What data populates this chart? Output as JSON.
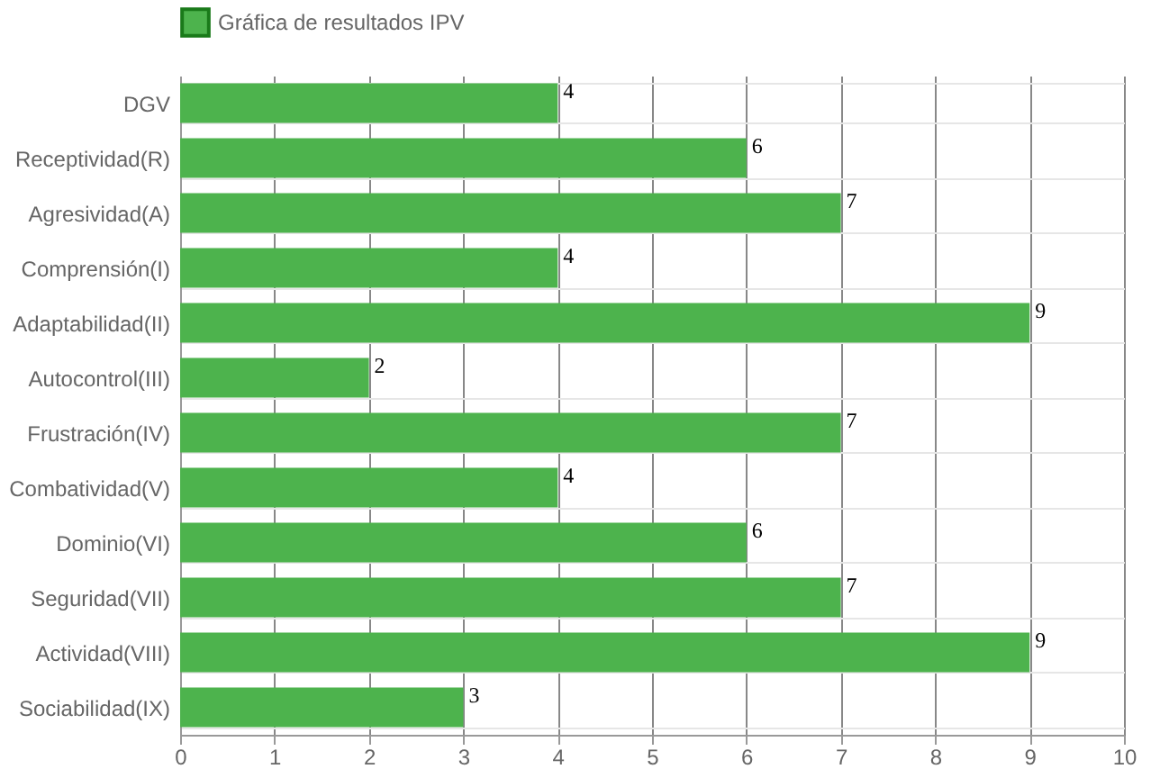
{
  "chart_data": {
    "type": "bar",
    "orientation": "horizontal",
    "categories": [
      "DGV",
      "Receptividad(R)",
      "Agresividad(A)",
      "Comprensión(I)",
      "Adaptabilidad(II)",
      "Autocontrol(III)",
      "Frustración(IV)",
      "Combatividad(V)",
      "Dominio(VI)",
      "Seguridad(VII)",
      "Actividad(VIII)",
      "Sociabilidad(IX)"
    ],
    "series": [
      {
        "name": "Gráfica de resultados IPV",
        "color": "#4db34d",
        "values": [
          4,
          6,
          7,
          4,
          9,
          2,
          7,
          4,
          6,
          7,
          9,
          3
        ]
      }
    ],
    "xlim": [
      0,
      10
    ],
    "xticks": [
      0,
      1,
      2,
      3,
      4,
      5,
      6,
      7,
      8,
      9,
      10
    ],
    "grid": true,
    "legend": "top",
    "data_labels": true
  }
}
